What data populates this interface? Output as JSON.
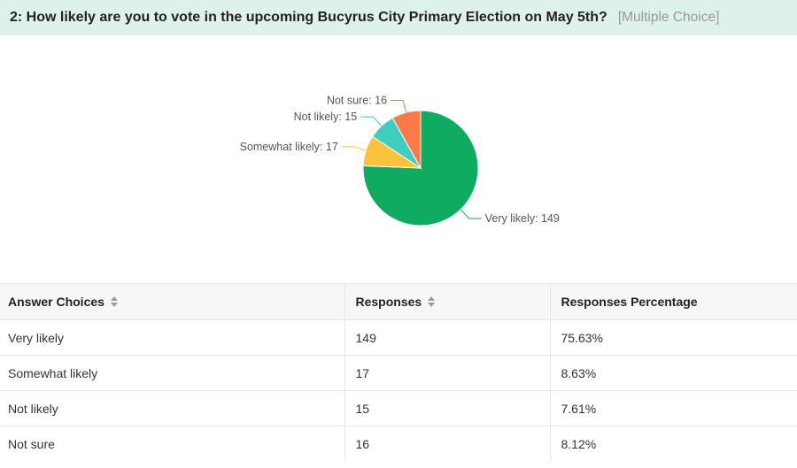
{
  "question": {
    "title": "2: How likely are you to vote in the upcoming Bucyrus City Primary Election on May 5th?",
    "type": "[Multiple Choice]"
  },
  "chart_data": {
    "type": "pie",
    "categories": [
      "Very likely",
      "Somewhat likely",
      "Not likely",
      "Not sure"
    ],
    "values": [
      149,
      17,
      15,
      16
    ],
    "labels": [
      "Very likely: 149",
      "Somewhat likely: 17",
      "Not likely: 15",
      "Not sure: 16"
    ],
    "colors": [
      "#0fab61",
      "#fbc33c",
      "#3ecec0",
      "#fb7a47"
    ],
    "legend": "none"
  },
  "table": {
    "headers": [
      "Answer Choices",
      "Responses",
      "Responses Percentage"
    ],
    "rows": [
      {
        "choice": "Very likely",
        "responses": "149",
        "percentage": "75.63%"
      },
      {
        "choice": "Somewhat likely",
        "responses": "17",
        "percentage": "8.63%"
      },
      {
        "choice": "Not likely",
        "responses": "15",
        "percentage": "7.61%"
      },
      {
        "choice": "Not sure",
        "responses": "16",
        "percentage": "8.12%"
      }
    ]
  }
}
